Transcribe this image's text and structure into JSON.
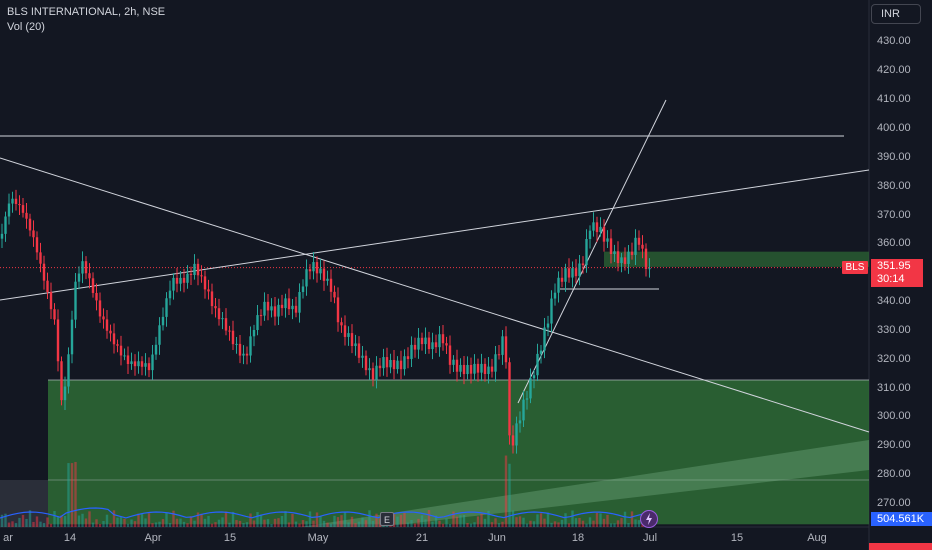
{
  "header": {
    "title": "BLS INTERNATIONAL, 2h, NSE",
    "volume_indicator": "Vol (20)"
  },
  "currency": "INR",
  "price_axis": [
    "430.00",
    "420.00",
    "410.00",
    "400.00",
    "390.00",
    "380.00",
    "370.00",
    "360.00",
    "340.00",
    "330.00",
    "320.00",
    "310.00",
    "300.00",
    "290.00",
    "280.00",
    "270.00"
  ],
  "date_axis": [
    "ar",
    "14",
    "Apr",
    "15",
    "May",
    "21",
    "Jun",
    "18",
    "Jul",
    "15",
    "Aug"
  ],
  "symbol_label": "BLS",
  "last_price": "351.95",
  "countdown": "30:14",
  "volume_value": "504.561K",
  "earnings_badge": "E",
  "colors": {
    "background": "#131722",
    "up": "#26a69a",
    "down": "#f23645",
    "zone": "#2e6b35",
    "volume_ma": "#2962ff"
  },
  "icons": {
    "dividend": "flash-icon"
  },
  "chart_data": {
    "type": "candlestick",
    "symbol": "BLS INTERNATIONAL",
    "interval": "2h",
    "exchange": "NSE",
    "y_range": [
      265,
      440
    ],
    "last_price": 351.95,
    "drawings": {
      "horizontal_lines": [
        397,
        344
      ],
      "supply_zone": [
        355,
        357.5
      ],
      "demand_zone": [
        263,
        313
      ]
    }
  }
}
